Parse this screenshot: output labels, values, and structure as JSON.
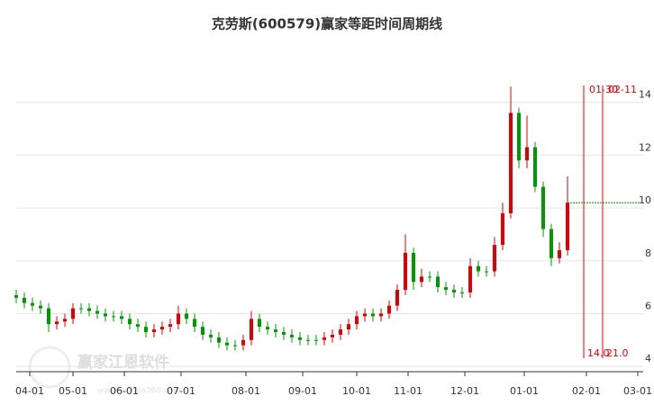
{
  "chart_data": {
    "type": "candlestick",
    "title": "克劳斯(600579)赢家等距时间周期线",
    "watermark": "赢家江恩软件",
    "watermark_url": "www.yingjia360.com",
    "up_color": "#e00000",
    "down_color": "#009900",
    "xlim": [
      0,
      232
    ],
    "ylim": [
      3.8,
      16
    ],
    "yticks": [
      4,
      6,
      8,
      10,
      12,
      14
    ],
    "xticks": [
      {
        "value": 5,
        "label": "04-01"
      },
      {
        "value": 21,
        "label": "05-01"
      },
      {
        "value": 40,
        "label": "06-01"
      },
      {
        "value": 61,
        "label": "07-01"
      },
      {
        "value": 85,
        "label": "08-01"
      },
      {
        "value": 106,
        "label": "09-01"
      },
      {
        "value": 126,
        "label": "10-01"
      },
      {
        "value": 145,
        "label": "11-01"
      },
      {
        "value": 166,
        "label": "12-01"
      },
      {
        "value": 188,
        "label": "01-01"
      },
      {
        "value": 211,
        "label": "02-01"
      },
      {
        "value": 230,
        "label": "03-01"
      }
    ],
    "grid": true,
    "x": [
      0,
      3,
      6,
      9,
      12,
      15,
      18,
      21,
      24,
      27,
      30,
      33,
      36,
      39,
      42,
      45,
      48,
      51,
      54,
      57,
      60,
      63,
      66,
      69,
      72,
      75,
      78,
      81,
      84,
      87,
      90,
      93,
      96,
      99,
      102,
      105,
      108,
      111,
      114,
      117,
      120,
      123,
      126,
      129,
      132,
      135,
      138,
      141,
      144,
      147,
      150,
      153,
      156,
      159,
      162,
      165,
      168,
      171,
      174,
      177,
      180,
      183,
      186,
      189,
      192,
      195,
      198,
      201,
      204
    ],
    "open": [
      6.7,
      6.6,
      6.4,
      6.3,
      6.2,
      5.6,
      5.7,
      5.8,
      6.2,
      6.2,
      6.1,
      6.0,
      5.9,
      5.9,
      5.8,
      5.6,
      5.5,
      5.3,
      5.4,
      5.5,
      5.6,
      6.0,
      5.8,
      5.5,
      5.2,
      5.1,
      4.9,
      4.8,
      4.8,
      5.0,
      5.8,
      5.5,
      5.4,
      5.3,
      5.2,
      5.1,
      5.0,
      5.0,
      5.0,
      5.1,
      5.2,
      5.4,
      5.6,
      5.9,
      6.0,
      5.9,
      6.0,
      6.3,
      6.9,
      8.3,
      7.2,
      7.4,
      7.4,
      7.0,
      6.9,
      6.8,
      6.8,
      7.8,
      7.6,
      7.6,
      8.6,
      9.8,
      13.6,
      11.8,
      12.3,
      10.8,
      9.2,
      8.1,
      8.4
    ],
    "high": [
      6.9,
      6.8,
      6.6,
      6.5,
      6.4,
      5.9,
      6.0,
      6.4,
      6.4,
      6.4,
      6.3,
      6.2,
      6.1,
      6.1,
      6.0,
      5.8,
      5.7,
      5.6,
      5.7,
      5.8,
      6.3,
      6.2,
      6.0,
      5.7,
      5.4,
      5.3,
      5.1,
      5.0,
      5.2,
      6.1,
      6.0,
      5.7,
      5.6,
      5.5,
      5.4,
      5.3,
      5.2,
      5.2,
      5.3,
      5.4,
      5.6,
      5.8,
      6.1,
      6.2,
      6.2,
      6.2,
      6.5,
      7.1,
      9.0,
      8.5,
      7.7,
      7.6,
      7.6,
      7.2,
      7.1,
      7.0,
      8.1,
      8.0,
      7.8,
      8.9,
      10.2,
      14.6,
      13.8,
      13.5,
      12.5,
      11.0,
      9.4,
      8.7,
      11.2
    ],
    "low": [
      6.4,
      6.2,
      6.1,
      6.0,
      5.3,
      5.4,
      5.5,
      5.6,
      6.0,
      5.9,
      5.8,
      5.7,
      5.7,
      5.6,
      5.4,
      5.3,
      5.1,
      5.1,
      5.2,
      5.3,
      5.4,
      5.6,
      5.3,
      5.0,
      4.9,
      4.7,
      4.6,
      4.6,
      4.6,
      4.8,
      5.3,
      5.2,
      5.1,
      5.0,
      4.9,
      4.8,
      4.8,
      4.8,
      4.8,
      4.9,
      5.0,
      5.2,
      5.4,
      5.7,
      5.7,
      5.7,
      5.8,
      6.1,
      6.7,
      6.9,
      7.0,
      7.2,
      6.8,
      6.7,
      6.6,
      6.6,
      6.6,
      7.4,
      7.4,
      7.4,
      8.4,
      9.6,
      11.5,
      11.5,
      10.6,
      8.9,
      7.8,
      7.9,
      8.2
    ],
    "close": [
      6.6,
      6.4,
      6.3,
      6.2,
      5.6,
      5.7,
      5.8,
      6.2,
      6.2,
      6.1,
      6.0,
      5.9,
      5.9,
      5.8,
      5.6,
      5.5,
      5.3,
      5.4,
      5.5,
      5.6,
      6.0,
      5.8,
      5.5,
      5.2,
      5.1,
      4.9,
      4.8,
      4.8,
      5.0,
      5.8,
      5.5,
      5.4,
      5.3,
      5.2,
      5.1,
      5.0,
      5.0,
      5.0,
      5.1,
      5.2,
      5.4,
      5.6,
      5.9,
      6.0,
      5.9,
      6.0,
      6.3,
      6.9,
      8.3,
      7.2,
      7.4,
      7.4,
      7.0,
      6.9,
      6.8,
      6.8,
      7.8,
      7.6,
      7.6,
      8.6,
      9.8,
      13.6,
      11.8,
      12.3,
      10.8,
      9.2,
      8.1,
      8.4,
      10.2
    ],
    "cycle_lines": [
      {
        "x": 210,
        "top_label": "01-30",
        "bottom_label": "14.0"
      },
      {
        "x": 217,
        "top_label": "02-11",
        "bottom_label": "21.0"
      }
    ],
    "level_line": {
      "value": 10.2,
      "from": 204,
      "color": "#009900"
    }
  }
}
